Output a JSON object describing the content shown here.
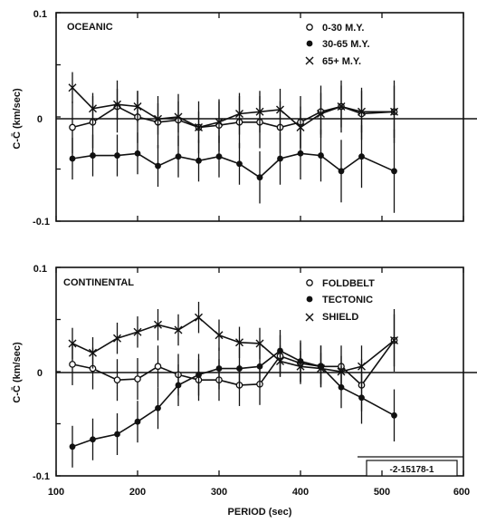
{
  "chart_data": [
    {
      "type": "line",
      "title": "OCEANIC",
      "xlabel": "PERIOD (sec)",
      "ylabel": "C-C̄ (km/sec)",
      "xlim": [
        100,
        600
      ],
      "ylim": [
        -0.1,
        0.1
      ],
      "ytick_labels": [
        "0.1",
        "0",
        "-0.1"
      ],
      "grid": false,
      "legend_placement": "top-right",
      "x": [
        120,
        145,
        175,
        200,
        225,
        250,
        275,
        300,
        325,
        350,
        375,
        400,
        425,
        450,
        475,
        515
      ],
      "series": [
        {
          "name": "0-30 M.Y.",
          "marker": "open-circle",
          "values": [
            -0.01,
            -0.005,
            0.01,
            0.0,
            -0.005,
            -0.003,
            -0.01,
            -0.008,
            -0.005,
            -0.005,
            -0.01,
            -0.005,
            0.005,
            0.01,
            0.003,
            0.005
          ],
          "errors": [
            0.025,
            0.025,
            0.025,
            0.025,
            0.025,
            0.025,
            0.025,
            0.025,
            0.025,
            0.025,
            0.025,
            0.025,
            0.025,
            0.025,
            0.025,
            0.03
          ]
        },
        {
          "name": "30-65 M.Y.",
          "marker": "filled-circle",
          "values": [
            -0.04,
            -0.037,
            -0.037,
            -0.035,
            -0.047,
            -0.038,
            -0.042,
            -0.038,
            -0.045,
            -0.058,
            -0.04,
            -0.035,
            -0.037,
            -0.052,
            -0.038,
            -0.052
          ],
          "errors": [
            0.02,
            0.02,
            0.02,
            0.02,
            0.02,
            0.02,
            0.02,
            0.02,
            0.02,
            0.025,
            0.025,
            0.025,
            0.025,
            0.03,
            0.03,
            0.04
          ]
        },
        {
          "name": "65+ M.Y.",
          "marker": "cross",
          "values": [
            0.028,
            0.008,
            0.012,
            0.01,
            -0.002,
            0.0,
            -0.01,
            -0.005,
            0.003,
            0.005,
            0.007,
            -0.01,
            0.003,
            0.01,
            0.005,
            0.005
          ],
          "errors": [
            0.015,
            0.015,
            0.015,
            0.015,
            0.015,
            0.015,
            0.015,
            0.02,
            0.02,
            0.02,
            0.02,
            0.02,
            0.02,
            0.02,
            0.02,
            0.025
          ]
        }
      ]
    },
    {
      "type": "line",
      "title": "CONTINENTAL",
      "xlabel": "PERIOD (sec)",
      "ylabel": "C-C̄ (km/sec)",
      "xlim": [
        100,
        600
      ],
      "ylim": [
        -0.1,
        0.1
      ],
      "xtick_labels": [
        "100",
        "200",
        "300",
        "400",
        "500",
        "600"
      ],
      "ytick_labels": [
        "0.1",
        "0",
        "-0.1"
      ],
      "grid": false,
      "legend_placement": "top-right",
      "annotation": "-2-15178-1",
      "x": [
        120,
        145,
        175,
        200,
        225,
        250,
        275,
        300,
        325,
        350,
        375,
        400,
        425,
        450,
        475,
        515
      ],
      "series": [
        {
          "name": "FOLDBELT",
          "marker": "open-circle",
          "values": [
            0.007,
            0.003,
            -0.008,
            -0.007,
            0.005,
            -0.003,
            -0.008,
            -0.008,
            -0.013,
            -0.012,
            0.015,
            0.008,
            0.005,
            0.005,
            -0.013,
            0.03
          ],
          "errors": [
            0.02,
            0.02,
            0.02,
            0.02,
            0.02,
            0.02,
            0.02,
            0.02,
            0.02,
            0.02,
            0.02,
            0.02,
            0.02,
            0.02,
            0.025,
            0.03
          ]
        },
        {
          "name": "TECTONIC",
          "marker": "filled-circle",
          "values": [
            -0.072,
            -0.065,
            -0.06,
            -0.048,
            -0.035,
            -0.013,
            -0.003,
            0.003,
            0.003,
            0.005,
            0.02,
            0.01,
            0.005,
            -0.015,
            -0.025,
            -0.042
          ],
          "errors": [
            0.02,
            0.02,
            0.02,
            0.02,
            0.02,
            0.02,
            0.02,
            0.02,
            0.02,
            0.02,
            0.02,
            0.02,
            0.02,
            0.02,
            0.025,
            0.025
          ]
        },
        {
          "name": "SHIELD",
          "marker": "cross",
          "values": [
            0.027,
            0.018,
            0.032,
            0.038,
            0.045,
            0.04,
            0.052,
            0.035,
            0.028,
            0.027,
            0.01,
            0.005,
            0.003,
            0.0,
            0.005,
            0.03
          ],
          "errors": [
            0.015,
            0.015,
            0.015,
            0.015,
            0.015,
            0.015,
            0.015,
            0.015,
            0.015,
            0.015,
            0.015,
            0.015,
            0.015,
            0.015,
            0.02,
            0.025
          ]
        }
      ]
    }
  ]
}
